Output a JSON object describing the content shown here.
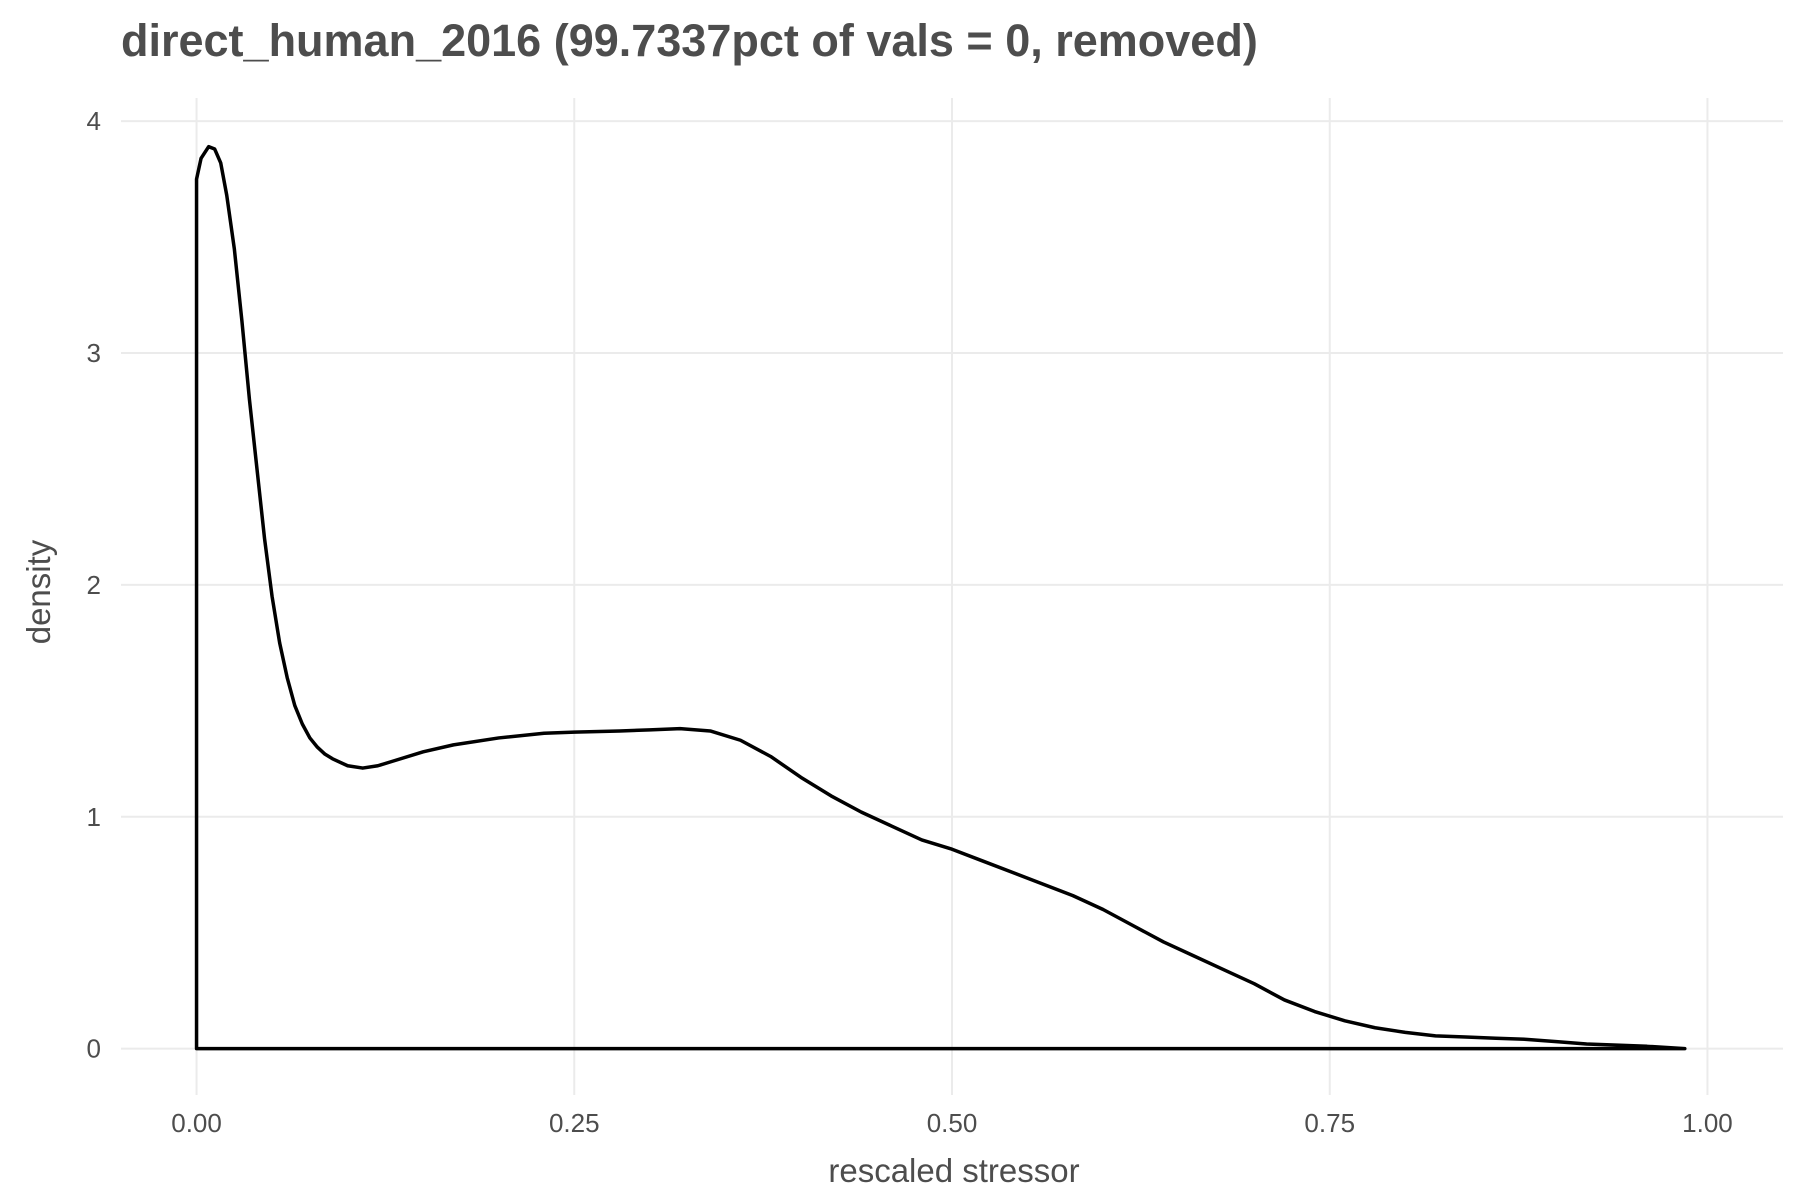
{
  "chart_data": {
    "type": "line",
    "title": "direct_human_2016 (99.7337pct of vals = 0, removed)",
    "xlabel": "rescaled stressor",
    "ylabel": "density",
    "xlim": [
      -0.05,
      1.05
    ],
    "ylim": [
      -0.2,
      4.1
    ],
    "x_ticks": [
      {
        "value": 0.0,
        "label": "0.00"
      },
      {
        "value": 0.25,
        "label": "0.25"
      },
      {
        "value": 0.5,
        "label": "0.50"
      },
      {
        "value": 0.75,
        "label": "0.75"
      },
      {
        "value": 1.0,
        "label": "1.00"
      }
    ],
    "y_ticks": [
      {
        "value": 0,
        "label": "0"
      },
      {
        "value": 1,
        "label": "1"
      },
      {
        "value": 2,
        "label": "2"
      },
      {
        "value": 3,
        "label": "3"
      },
      {
        "value": 4,
        "label": "4"
      }
    ],
    "grid": true,
    "legend": "none",
    "line_color": "#000000",
    "grid_color": "#ebebeb",
    "text_color": "#4d4d4d",
    "series": [
      {
        "x": [
          0.0,
          0.0,
          0.003,
          0.008,
          0.012,
          0.016,
          0.02,
          0.025,
          0.03,
          0.035,
          0.04,
          0.045,
          0.05,
          0.055,
          0.06,
          0.065,
          0.07,
          0.075,
          0.08,
          0.085,
          0.09,
          0.1,
          0.11,
          0.12,
          0.13,
          0.15,
          0.17,
          0.2,
          0.23,
          0.25,
          0.28,
          0.3,
          0.32,
          0.34,
          0.36,
          0.38,
          0.4,
          0.42,
          0.44,
          0.46,
          0.48,
          0.5,
          0.52,
          0.54,
          0.56,
          0.58,
          0.6,
          0.62,
          0.64,
          0.66,
          0.68,
          0.7,
          0.72,
          0.74,
          0.76,
          0.78,
          0.8,
          0.82,
          0.84,
          0.86,
          0.88,
          0.9,
          0.92,
          0.94,
          0.96,
          0.985,
          0.985,
          0.0
        ],
        "y": [
          0.0,
          3.75,
          3.84,
          3.89,
          3.88,
          3.82,
          3.68,
          3.45,
          3.14,
          2.8,
          2.5,
          2.2,
          1.95,
          1.75,
          1.6,
          1.48,
          1.4,
          1.34,
          1.3,
          1.27,
          1.25,
          1.22,
          1.21,
          1.22,
          1.24,
          1.28,
          1.31,
          1.34,
          1.36,
          1.365,
          1.37,
          1.375,
          1.38,
          1.37,
          1.33,
          1.26,
          1.17,
          1.09,
          1.02,
          0.96,
          0.9,
          0.86,
          0.81,
          0.76,
          0.71,
          0.66,
          0.6,
          0.53,
          0.46,
          0.4,
          0.34,
          0.28,
          0.21,
          0.16,
          0.12,
          0.09,
          0.07,
          0.055,
          0.05,
          0.045,
          0.04,
          0.03,
          0.02,
          0.015,
          0.01,
          0.0,
          0.0,
          0.0
        ]
      }
    ]
  }
}
